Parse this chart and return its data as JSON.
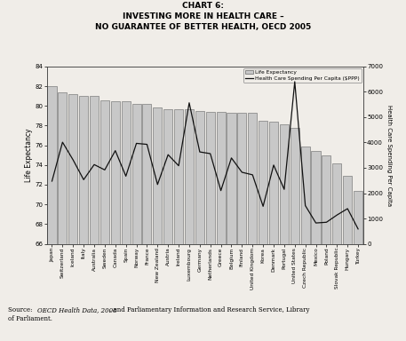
{
  "title_line1": "CHART 6:",
  "title_line2": "INVESTING MORE IN HEALTH CARE –",
  "title_line3": "NO GUARANTEE OF BETTER HEALTH, OECD 2005",
  "countries": [
    "Japan",
    "Switzerland",
    "Iceland",
    "Italy",
    "Australia",
    "Sweden",
    "Canada",
    "Spain",
    "Norway",
    "France",
    "New Zealand",
    "Austria",
    "Ireland",
    "Luxembourg",
    "Germany",
    "Netherlands",
    "Greece",
    "Belgium",
    "Finland",
    "United Kingdom",
    "Korea",
    "Denmark",
    "Portugal",
    "United States",
    "Czech Republic",
    "Mexico",
    "Poland",
    "Slovak Republic",
    "Hungary",
    "Turkey"
  ],
  "life_expectancy": [
    82.0,
    81.4,
    81.2,
    81.0,
    81.0,
    80.6,
    80.5,
    80.5,
    80.2,
    80.2,
    79.8,
    79.7,
    79.7,
    79.7,
    79.5,
    79.4,
    79.4,
    79.3,
    79.3,
    79.3,
    78.5,
    78.4,
    78.1,
    77.8,
    75.9,
    75.4,
    75.0,
    74.2,
    72.9,
    71.4
  ],
  "health_spending": [
    2474,
    4011,
    3313,
    2532,
    3128,
    2918,
    3678,
    2671,
    3966,
    3926,
    2343,
    3519,
    3082,
    5567,
    3628,
    3560,
    2101,
    3389,
    2824,
    2724,
    1480,
    3108,
    2150,
    6401,
    1510,
    823,
    851,
    1137,
    1388,
    586
  ],
  "bar_color": "#c8c8c8",
  "bar_edge_color": "#666666",
  "line_color": "#111111",
  "ylabel_left": "Life Expectancy",
  "ylabel_right": "Health Care Spending Per Capita",
  "ylim_left": [
    66,
    84
  ],
  "ylim_right": [
    0,
    7000
  ],
  "yticks_left": [
    66,
    68,
    70,
    72,
    74,
    76,
    78,
    80,
    82,
    84
  ],
  "yticks_right": [
    0,
    1000,
    2000,
    3000,
    4000,
    5000,
    6000,
    7000
  ],
  "background_color": "#f0ede8",
  "legend_life": "Life Expectancy",
  "legend_spending": "Health Care Spending Per Capita ($PPP)"
}
